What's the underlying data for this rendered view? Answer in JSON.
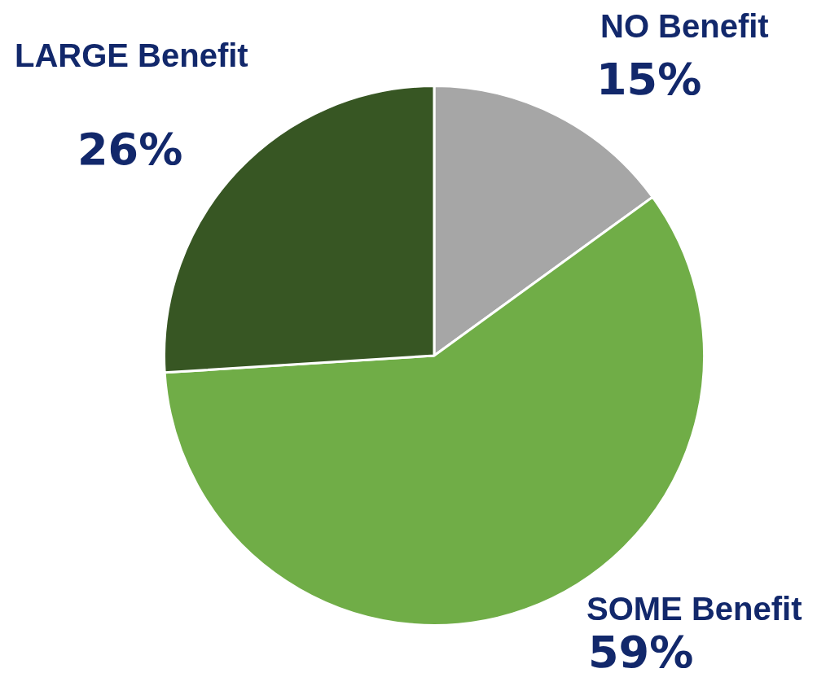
{
  "chart_data": {
    "type": "pie",
    "categories": [
      "NO Benefit",
      "SOME Benefit",
      "LARGE Benefit"
    ],
    "values": [
      15,
      59,
      26
    ],
    "colors": [
      "#a6a6a6",
      "#70ad47",
      "#375623"
    ],
    "value_labels": [
      "15%",
      "59%",
      "26%"
    ]
  }
}
